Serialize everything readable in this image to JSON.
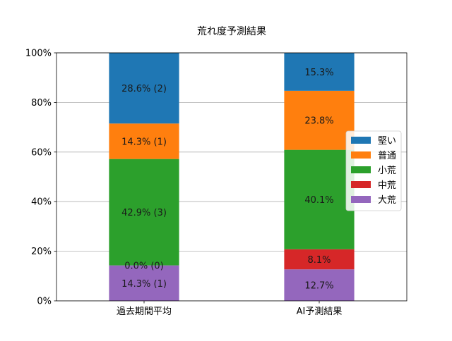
{
  "chart_data": {
    "type": "bar",
    "stacked": true,
    "title": "荒れ度予測結果",
    "xlabel": "",
    "ylabel": "",
    "ylim": [
      0,
      100
    ],
    "y_ticks": [
      "0%",
      "20%",
      "40%",
      "60%",
      "80%",
      "100%"
    ],
    "grid": "horizontal",
    "legend_position": "right",
    "categories": [
      "過去期間平均",
      "AI予測結果"
    ],
    "series": [
      {
        "name": "大荒",
        "color": "#9467bd",
        "values": [
          14.3,
          12.7
        ],
        "labels": [
          "14.3% (1)",
          "12.7%"
        ]
      },
      {
        "name": "中荒",
        "color": "#d62728",
        "values": [
          0.0,
          8.1
        ],
        "labels": [
          "0.0% (0)",
          "8.1%"
        ]
      },
      {
        "name": "小荒",
        "color": "#2ca02c",
        "values": [
          42.9,
          40.1
        ],
        "labels": [
          "42.9% (3)",
          "40.1%"
        ]
      },
      {
        "name": "普通",
        "color": "#ff7f0e",
        "values": [
          14.3,
          23.8
        ],
        "labels": [
          "14.3% (1)",
          "23.8%"
        ]
      },
      {
        "name": "堅い",
        "color": "#1f77b4",
        "values": [
          28.6,
          15.3
        ],
        "labels": [
          "28.6% (2)",
          "15.3%"
        ]
      }
    ],
    "legend_order": [
      "堅い",
      "普通",
      "小荒",
      "中荒",
      "大荒"
    ]
  }
}
